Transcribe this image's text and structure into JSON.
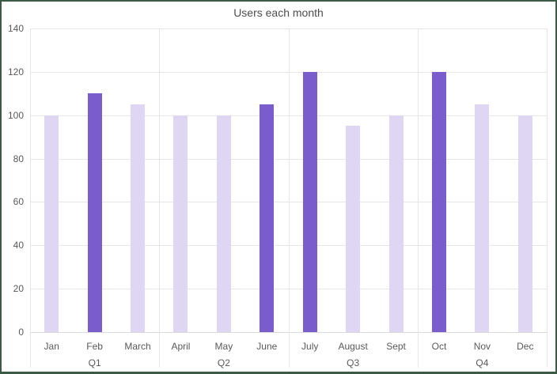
{
  "chart_data": {
    "type": "bar",
    "title": "Users each month",
    "categories": [
      "Jan",
      "Feb",
      "March",
      "April",
      "May",
      "June",
      "July",
      "August",
      "Sept",
      "Oct",
      "Nov",
      "Dec"
    ],
    "values": [
      100,
      110,
      105,
      100,
      100,
      105,
      120,
      95,
      100,
      120,
      105,
      100
    ],
    "group_labels": [
      "Q1",
      "Q2",
      "Q3",
      "Q4"
    ],
    "categories_per_group": 3,
    "highlighted_categories": [
      "Feb",
      "June",
      "July",
      "Oct"
    ],
    "xlabel": "",
    "ylabel": "",
    "ylim": [
      0,
      140
    ],
    "yticks": [
      0,
      20,
      40,
      60,
      80,
      100,
      120,
      140
    ],
    "grid": true,
    "legend": "none"
  },
  "colors": {
    "bar_normal": "#ded6f3",
    "bar_highlight": "#7a5ccd",
    "gridline": "#e6e6e6",
    "axis_line": "#d9d9d9",
    "tick_text": "#595959",
    "title_text": "#4d4d4d",
    "frame_border": "#3c5a46",
    "background": "#ffffff"
  }
}
